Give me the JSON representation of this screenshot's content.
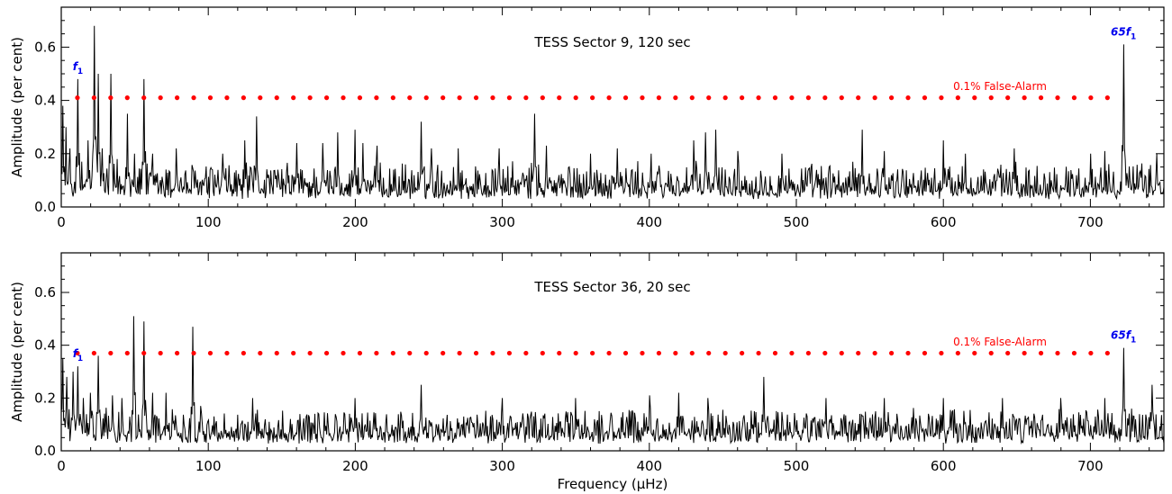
{
  "chart_data": [
    {
      "type": "line",
      "title": "TESS Sector 9, 120 sec",
      "xlabel": "",
      "ylabel": "Amplitude (per cent)",
      "xlim": [
        0,
        750
      ],
      "ylim": [
        0,
        0.75
      ],
      "xticks": [
        0,
        100,
        200,
        300,
        400,
        500,
        600,
        700
      ],
      "yticks": [
        0.0,
        0.2,
        0.4,
        0.6
      ],
      "ytick_labels": [
        "0.0",
        "0.2",
        "0.4",
        "0.6"
      ],
      "grid": false,
      "series": [
        {
          "peaks": [
            {
              "x": 1,
              "y": 0.38
            },
            {
              "x": 3,
              "y": 0.3
            },
            {
              "x": 6,
              "y": 0.22
            },
            {
              "x": 11.3,
              "y": 0.48
            },
            {
              "x": 14,
              "y": 0.17
            },
            {
              "x": 18,
              "y": 0.25
            },
            {
              "x": 22.6,
              "y": 0.68
            },
            {
              "x": 25,
              "y": 0.5
            },
            {
              "x": 28,
              "y": 0.22
            },
            {
              "x": 33.9,
              "y": 0.5
            },
            {
              "x": 38,
              "y": 0.18
            },
            {
              "x": 45.2,
              "y": 0.35
            },
            {
              "x": 50,
              "y": 0.2
            },
            {
              "x": 56.5,
              "y": 0.48
            },
            {
              "x": 62,
              "y": 0.2
            },
            {
              "x": 78,
              "y": 0.22
            },
            {
              "x": 110,
              "y": 0.2
            },
            {
              "x": 125,
              "y": 0.25
            },
            {
              "x": 133,
              "y": 0.34
            },
            {
              "x": 160,
              "y": 0.24
            },
            {
              "x": 178,
              "y": 0.24
            },
            {
              "x": 188,
              "y": 0.28
            },
            {
              "x": 200,
              "y": 0.29
            },
            {
              "x": 205,
              "y": 0.24
            },
            {
              "x": 215,
              "y": 0.23
            },
            {
              "x": 245,
              "y": 0.32
            },
            {
              "x": 252,
              "y": 0.22
            },
            {
              "x": 270,
              "y": 0.22
            },
            {
              "x": 298,
              "y": 0.22
            },
            {
              "x": 322,
              "y": 0.35
            },
            {
              "x": 330,
              "y": 0.23
            },
            {
              "x": 360,
              "y": 0.2
            },
            {
              "x": 378,
              "y": 0.22
            },
            {
              "x": 401,
              "y": 0.2
            },
            {
              "x": 430,
              "y": 0.25
            },
            {
              "x": 438,
              "y": 0.28
            },
            {
              "x": 445,
              "y": 0.29
            },
            {
              "x": 460,
              "y": 0.21
            },
            {
              "x": 490,
              "y": 0.2
            },
            {
              "x": 545,
              "y": 0.29
            },
            {
              "x": 560,
              "y": 0.21
            },
            {
              "x": 600,
              "y": 0.25
            },
            {
              "x": 615,
              "y": 0.2
            },
            {
              "x": 648,
              "y": 0.22
            },
            {
              "x": 700,
              "y": 0.2
            },
            {
              "x": 710,
              "y": 0.21
            },
            {
              "x": 722.5,
              "y": 0.61
            },
            {
              "x": 745,
              "y": 0.2
            }
          ],
          "noise_level": 0.08
        }
      ],
      "threshold": {
        "y": 0.41,
        "label": "0.1% False-Alarm",
        "color": "#ff0000",
        "x_start": 11,
        "x_end": 722,
        "spacing": 11.3
      },
      "annotations": [
        {
          "text_main": "f",
          "text_sub": "1",
          "x": 11.3,
          "y": 0.48
        },
        {
          "text_main": "65f",
          "text_sub": "1",
          "x": 722.5,
          "y": 0.61
        }
      ],
      "colors": {
        "line": "#000000",
        "threshold": "#ff0000",
        "annotation": "#0000ee"
      }
    },
    {
      "type": "line",
      "title": "TESS Sector 36, 20 sec",
      "xlabel": "Frequency (μHz)",
      "ylabel": "Amplitude (per cent)",
      "xlim": [
        0,
        750
      ],
      "ylim": [
        0,
        0.75
      ],
      "xticks": [
        0,
        100,
        200,
        300,
        400,
        500,
        600,
        700
      ],
      "yticks": [
        0.0,
        0.2,
        0.4,
        0.6
      ],
      "ytick_labels": [
        "0.0",
        "0.2",
        "0.4",
        "0.6"
      ],
      "grid": false,
      "series": [
        {
          "peaks": [
            {
              "x": 1,
              "y": 0.35
            },
            {
              "x": 4,
              "y": 0.28
            },
            {
              "x": 8,
              "y": 0.3
            },
            {
              "x": 11.3,
              "y": 0.32
            },
            {
              "x": 15,
              "y": 0.2
            },
            {
              "x": 20,
              "y": 0.22
            },
            {
              "x": 25,
              "y": 0.36
            },
            {
              "x": 35,
              "y": 0.21
            },
            {
              "x": 41,
              "y": 0.2
            },
            {
              "x": 49.5,
              "y": 0.51
            },
            {
              "x": 56.2,
              "y": 0.49
            },
            {
              "x": 62,
              "y": 0.22
            },
            {
              "x": 71,
              "y": 0.22
            },
            {
              "x": 89.5,
              "y": 0.47
            },
            {
              "x": 95,
              "y": 0.17
            },
            {
              "x": 130,
              "y": 0.2
            },
            {
              "x": 200,
              "y": 0.2
            },
            {
              "x": 245,
              "y": 0.25
            },
            {
              "x": 300,
              "y": 0.2
            },
            {
              "x": 350,
              "y": 0.2
            },
            {
              "x": 400,
              "y": 0.21
            },
            {
              "x": 420,
              "y": 0.22
            },
            {
              "x": 440,
              "y": 0.2
            },
            {
              "x": 478,
              "y": 0.28
            },
            {
              "x": 520,
              "y": 0.2
            },
            {
              "x": 560,
              "y": 0.2
            },
            {
              "x": 600,
              "y": 0.2
            },
            {
              "x": 640,
              "y": 0.2
            },
            {
              "x": 680,
              "y": 0.2
            },
            {
              "x": 710,
              "y": 0.2
            },
            {
              "x": 722.5,
              "y": 0.39
            },
            {
              "x": 742,
              "y": 0.25
            }
          ],
          "noise_level": 0.075
        }
      ],
      "threshold": {
        "y": 0.37,
        "label": "0.1% False-Alarm",
        "color": "#ff0000",
        "x_start": 11,
        "x_end": 722,
        "spacing": 11.3
      },
      "annotations": [
        {
          "text_main": "f",
          "text_sub": "1",
          "x": 11.3,
          "y": 0.32
        },
        {
          "text_main": "65f",
          "text_sub": "1",
          "x": 722.5,
          "y": 0.39
        }
      ],
      "colors": {
        "line": "#000000",
        "threshold": "#ff0000",
        "annotation": "#0000ee"
      }
    }
  ]
}
